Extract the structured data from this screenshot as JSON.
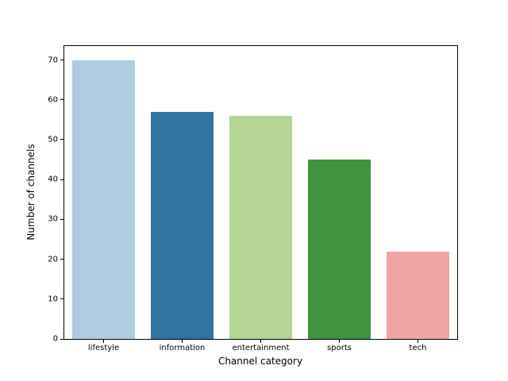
{
  "figure": {
    "background": "#ffffff"
  },
  "chart_data": {
    "type": "bar",
    "xlabel": "Channel category",
    "ylabel": "Number of channels",
    "categories": [
      "lifestyle",
      "information",
      "entertainment",
      "sports",
      "tech"
    ],
    "values": [
      70,
      57,
      56,
      45,
      22
    ],
    "bar_colors": [
      "#aecce0",
      "#3274a1",
      "#b3d495",
      "#40923b",
      "#efa6a5"
    ],
    "ylim": [
      0,
      73.5
    ],
    "yticks": [
      0,
      10,
      20,
      30,
      40,
      50,
      60,
      70
    ],
    "bar_width_fraction": 0.8,
    "grid": false,
    "legend": "none",
    "axis_color": "#000000",
    "text_color": "#000000"
  }
}
